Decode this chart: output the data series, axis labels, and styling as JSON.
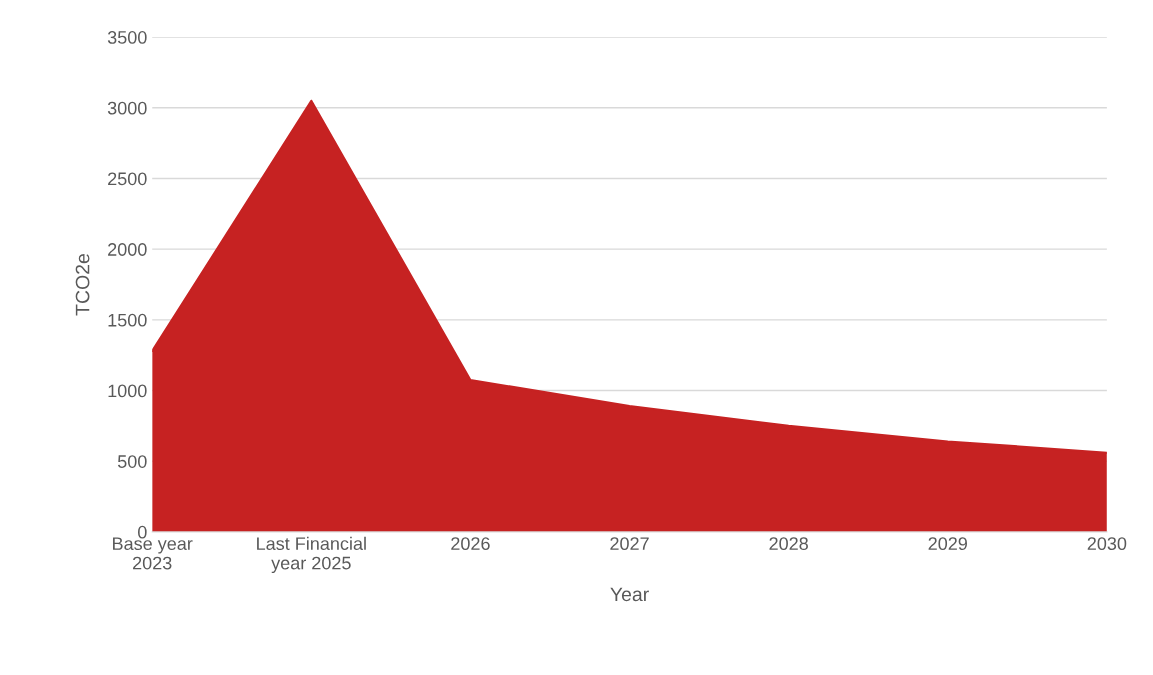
{
  "chart_data": {
    "type": "area",
    "categories": [
      "Base year\n2023",
      "Last Financial\nyear 2025",
      "2026",
      "2027",
      "2028",
      "2029",
      "2030"
    ],
    "series": [
      {
        "color": "#c62222",
        "values": [
          1280,
          3050,
          1075,
          890,
          750,
          640,
          560
        ]
      }
    ],
    "xlabel": "Year",
    "ylabel": "TCO2e",
    "ylim": [
      0,
      3500
    ],
    "yticks": [
      0,
      500,
      1000,
      1500,
      2000,
      2500,
      3000,
      3500
    ],
    "grid": "y",
    "legend": false
  }
}
